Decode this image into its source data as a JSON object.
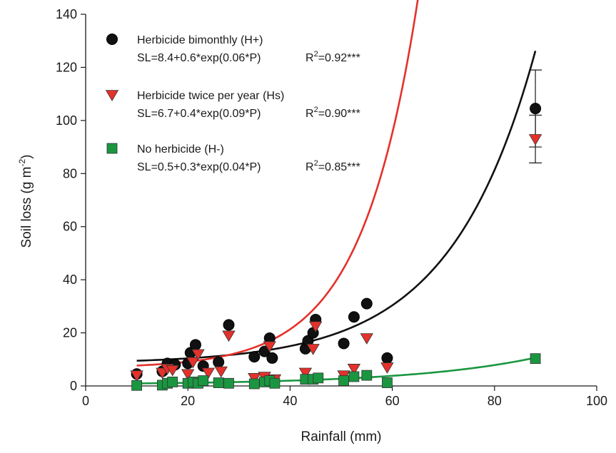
{
  "chart_data": {
    "type": "scatter",
    "xlabel": "Rainfall (mm)",
    "ylabel_main": "Soil loss (g m",
    "ylabel_sup": "-2",
    "ylabel_close": ")",
    "xlim": [
      0,
      100
    ],
    "ylim": [
      0,
      140
    ],
    "x_ticks": [
      "0",
      "20",
      "40",
      "60",
      "80",
      "100"
    ],
    "y_ticks": [
      "0",
      "20",
      "40",
      "60",
      "80",
      "100",
      "120",
      "140"
    ],
    "grid": false,
    "legend_position": "top-left",
    "series": [
      {
        "name": "Herbicide bimonthly (H+)",
        "equation": "SL=8.4+0.6*exp(0.06*P)",
        "r2_prefix": "R",
        "r2_sup": "2",
        "r2_value": "=0.92***",
        "marker": "circle",
        "color": "#111111",
        "line_color": "#111111",
        "fit": {
          "a": 8.4,
          "b": 0.6,
          "c": 0.06
        },
        "points": [
          {
            "x": 10,
            "y": 4.5
          },
          {
            "x": 15,
            "y": 5.5
          },
          {
            "x": 16,
            "y": 8.5
          },
          {
            "x": 17.5,
            "y": 8
          },
          {
            "x": 20,
            "y": 8.5
          },
          {
            "x": 20.5,
            "y": 12.5
          },
          {
            "x": 21.5,
            "y": 15.5
          },
          {
            "x": 23,
            "y": 7.5
          },
          {
            "x": 26,
            "y": 9
          },
          {
            "x": 28,
            "y": 23
          },
          {
            "x": 33,
            "y": 11
          },
          {
            "x": 35,
            "y": 13
          },
          {
            "x": 36,
            "y": 18
          },
          {
            "x": 36.5,
            "y": 10.5
          },
          {
            "x": 43,
            "y": 14
          },
          {
            "x": 43.5,
            "y": 17
          },
          {
            "x": 44.5,
            "y": 20
          },
          {
            "x": 45,
            "y": 25
          },
          {
            "x": 50.5,
            "y": 16
          },
          {
            "x": 52.5,
            "y": 26
          },
          {
            "x": 55,
            "y": 31
          },
          {
            "x": 59,
            "y": 10.5
          },
          {
            "x": 88,
            "y": 104.5,
            "err": 14.5
          }
        ]
      },
      {
        "name": "Herbicide twice per year (Hs)",
        "equation": "SL=6.7+0.4*exp(0.09*P)",
        "r2_prefix": "R",
        "r2_sup": "2",
        "r2_value": "=0.90***",
        "marker": "triangle-down",
        "color": "#e4312b",
        "line_color": "#e4312b",
        "fit": {
          "a": 6.7,
          "b": 0.4,
          "c": 0.09
        },
        "points": [
          {
            "x": 10,
            "y": 4
          },
          {
            "x": 15,
            "y": 5
          },
          {
            "x": 16,
            "y": 6.5
          },
          {
            "x": 17,
            "y": 6
          },
          {
            "x": 20,
            "y": 4.5
          },
          {
            "x": 21,
            "y": 9
          },
          {
            "x": 22,
            "y": 12
          },
          {
            "x": 24,
            "y": 5
          },
          {
            "x": 26.5,
            "y": 5.5
          },
          {
            "x": 28,
            "y": 19
          },
          {
            "x": 33,
            "y": 3
          },
          {
            "x": 35,
            "y": 3.5
          },
          {
            "x": 36,
            "y": 15
          },
          {
            "x": 37,
            "y": 2.5
          },
          {
            "x": 43,
            "y": 5
          },
          {
            "x": 44.5,
            "y": 14
          },
          {
            "x": 45,
            "y": 22.5
          },
          {
            "x": 50.5,
            "y": 4
          },
          {
            "x": 52.5,
            "y": 6.5
          },
          {
            "x": 55,
            "y": 18
          },
          {
            "x": 59,
            "y": 7
          },
          {
            "x": 88,
            "y": 93,
            "err": 9
          }
        ]
      },
      {
        "name": "No herbicide (H-)",
        "equation": "SL=0.5+0.3*exp(0.04*P)",
        "r2_prefix": "R",
        "r2_sup": "2",
        "r2_value": "=0.85***",
        "marker": "square",
        "color": "#1a9640",
        "line_color": "#1a9640",
        "fit": {
          "a": 0.5,
          "b": 0.3,
          "c": 0.04
        },
        "points": [
          {
            "x": 10,
            "y": 0.2
          },
          {
            "x": 15,
            "y": 0.3
          },
          {
            "x": 16,
            "y": 1
          },
          {
            "x": 17,
            "y": 1.5
          },
          {
            "x": 20,
            "y": 1
          },
          {
            "x": 21,
            "y": 1.5
          },
          {
            "x": 22,
            "y": 1
          },
          {
            "x": 23,
            "y": 2
          },
          {
            "x": 26,
            "y": 1.2
          },
          {
            "x": 28,
            "y": 1
          },
          {
            "x": 33,
            "y": 0.8
          },
          {
            "x": 35,
            "y": 1.5
          },
          {
            "x": 36,
            "y": 2
          },
          {
            "x": 37,
            "y": 1
          },
          {
            "x": 43,
            "y": 2.5
          },
          {
            "x": 44.5,
            "y": 2.5
          },
          {
            "x": 45.5,
            "y": 3
          },
          {
            "x": 50.5,
            "y": 2
          },
          {
            "x": 52.5,
            "y": 3.5
          },
          {
            "x": 55,
            "y": 4
          },
          {
            "x": 59,
            "y": 1.2
          },
          {
            "x": 88,
            "y": 10.3
          }
        ]
      }
    ]
  }
}
